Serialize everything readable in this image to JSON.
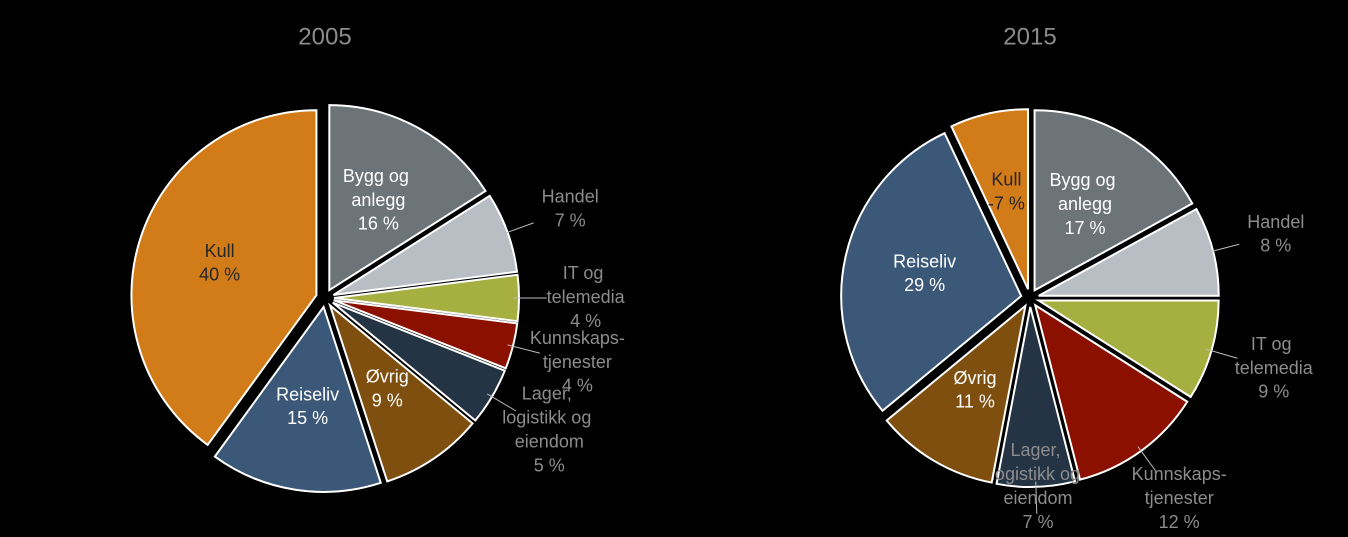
{
  "chart_data": [
    {
      "type": "pie",
      "title": "2005",
      "categories": [
        "Bygg og anlegg",
        "Handel",
        "IT og telemedia",
        "Kunnskaps-tjenester",
        "Lager, logistikk og eiendom",
        "Øvrig",
        "Reiseliv",
        "Kull"
      ],
      "values": [
        16,
        7,
        4,
        4,
        5,
        9,
        15,
        40
      ],
      "value_labels": [
        "16 %",
        "7 %",
        "4 %",
        "4 %",
        "5 %",
        "9 %",
        "15 %",
        "40 %"
      ],
      "colors": [
        "#6d7478",
        "#b8bec3",
        "#a5b040",
        "#8b1000",
        "#243444",
        "#7f4f10",
        "#3c5878",
        "#d27c19"
      ]
    },
    {
      "type": "pie",
      "title": "2015",
      "categories": [
        "Bygg og anlegg",
        "Handel",
        "IT og telemedia",
        "Kunnskaps-tjenester",
        "Lager, logistikk og eiendom",
        "Øvrig",
        "Reiseliv",
        "Kull"
      ],
      "values": [
        17,
        8,
        9,
        12,
        7,
        11,
        29,
        -7
      ],
      "value_labels": [
        "17 %",
        "8 %",
        "9 %",
        "12 %",
        "7 %",
        "11 %",
        "29 %",
        "-7 %"
      ],
      "colors": [
        "#6d7478",
        "#b8bec3",
        "#a5b040",
        "#8b1000",
        "#243444",
        "#7f4f10",
        "#3c5878",
        "#d27c19"
      ]
    }
  ]
}
